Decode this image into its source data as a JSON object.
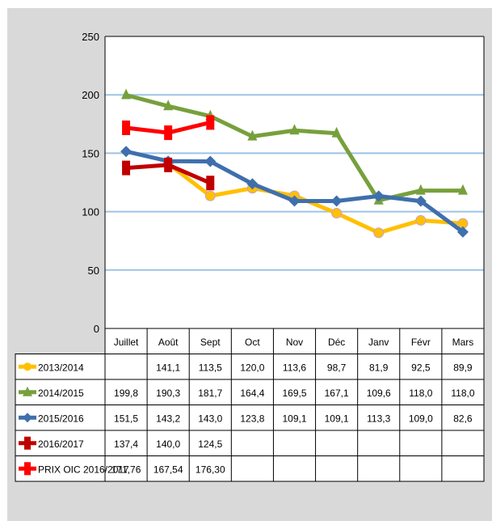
{
  "chart_data": {
    "type": "line",
    "categories": [
      "Juillet",
      "Août",
      "Sept",
      "Oct",
      "Nov",
      "Déc",
      "Janv",
      "Févr",
      "Mars"
    ],
    "ylim": [
      0,
      250
    ],
    "yticks": [
      0,
      50,
      100,
      150,
      200,
      250
    ],
    "grid": true,
    "legend": "table-below",
    "series": [
      {
        "name": "2013/2014",
        "color": "#ffc000",
        "marker": "circle",
        "values": [
          null,
          141.1,
          113.5,
          120.0,
          113.6,
          98.7,
          81.9,
          92.5,
          89.9
        ],
        "labels": [
          "",
          "141,1",
          "113,5",
          "120,0",
          "113,6",
          "98,7",
          "81,9",
          "92,5",
          "89,9"
        ]
      },
      {
        "name": "2014/2015",
        "color": "#77a03c",
        "marker": "triangle",
        "values": [
          199.8,
          190.3,
          181.7,
          164.4,
          169.5,
          167.1,
          109.6,
          118.0,
          118.0
        ],
        "labels": [
          "199,8",
          "190,3",
          "181,7",
          "164,4",
          "169,5",
          "167,1",
          "109,6",
          "118,0",
          "118,0"
        ]
      },
      {
        "name": "2015/2016",
        "color": "#3f6fac",
        "marker": "diamond",
        "values": [
          151.5,
          143.2,
          143.0,
          123.8,
          109.1,
          109.1,
          113.3,
          109.0,
          82.6
        ],
        "labels": [
          "151,5",
          "143,2",
          "143,0",
          "123,8",
          "109,1",
          "109,1",
          "113,3",
          "109,0",
          "82,6"
        ]
      },
      {
        "name": "2016/2017",
        "color": "#c00000",
        "marker": "square",
        "values": [
          137.4,
          140.0,
          124.5,
          null,
          null,
          null,
          null,
          null,
          null
        ],
        "labels": [
          "137,4",
          "140,0",
          "124,5",
          "",
          "",
          "",
          "",
          "",
          ""
        ]
      },
      {
        "name": "PRIX OIC 2016/2017",
        "color": "#ff0000",
        "marker": "square",
        "values": [
          171.76,
          167.54,
          176.3,
          null,
          null,
          null,
          null,
          null,
          null
        ],
        "labels": [
          "171,76",
          "167,54",
          "176,30",
          "",
          "",
          "",
          "",
          "",
          ""
        ]
      }
    ]
  }
}
